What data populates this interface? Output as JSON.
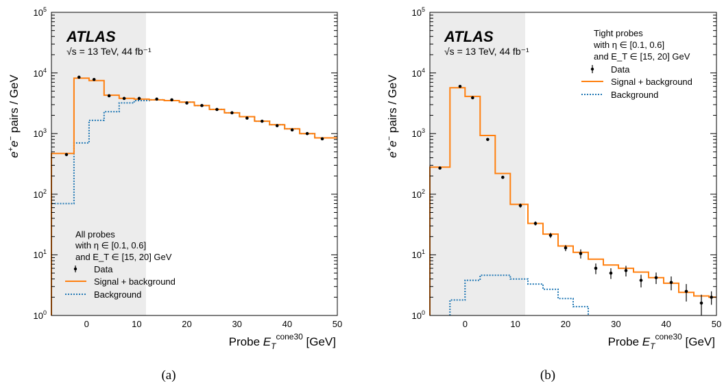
{
  "colors": {
    "signal_bkg": "#ff7f0e",
    "background": "#1f77b4",
    "data": "#000000",
    "shade": "#ececec"
  },
  "chart_data": [
    {
      "type": "histogram",
      "panel_label": "(a)",
      "experiment": "ATLAS",
      "energy_text": "√s = 13 TeV, 44 fb⁻¹",
      "xlabel": "Probe E_T^cone30 [GeV]",
      "ylabel": "e⁺e⁻ pairs / GeV",
      "xlim": [
        -7,
        50
      ],
      "ylim": [
        1,
        100000
      ],
      "yscale": "log",
      "x_ticks": [
        0,
        10,
        20,
        30,
        40,
        50
      ],
      "y_ticks": [
        1,
        10,
        100,
        1000,
        10000,
        100000
      ],
      "y_tick_labels": [
        "10^0",
        "10^1",
        "10^2",
        "10^3",
        "10^4",
        "10^5"
      ],
      "shaded_region": [
        -7,
        12.5
      ],
      "legend_position": "bottom-left",
      "legend_title": [
        "All probes",
        "with η ∈ [0.1, 0.6]",
        "and E_T ∈ [15, 20] GeV"
      ],
      "legend": [
        "Data",
        "Signal + background",
        "Background"
      ],
      "bin_edges": [
        -7,
        -2.5,
        0.5,
        3.5,
        6.5,
        9.5,
        12.5,
        15.5,
        18.5,
        21.5,
        24.5,
        27.5,
        30.5,
        33.5,
        36.5,
        39.5,
        42.5,
        45.5,
        48.5,
        50
      ],
      "series": [
        {
          "name": "Data",
          "style": "points",
          "x": [
            -4,
            -1.5,
            1.5,
            4.5,
            7.5,
            10.5,
            14,
            17,
            20,
            23,
            26,
            29,
            32,
            35,
            38,
            41,
            44,
            47
          ],
          "y": [
            450,
            8500,
            7800,
            4200,
            3800,
            3800,
            3700,
            3600,
            3200,
            2900,
            2500,
            2200,
            1800,
            1600,
            1350,
            1150,
            1000,
            820
          ]
        },
        {
          "name": "Signal + background",
          "style": "step",
          "values": [
            470,
            8200,
            7500,
            4300,
            3800,
            3700,
            3600,
            3500,
            3300,
            2900,
            2500,
            2200,
            1900,
            1600,
            1400,
            1200,
            1000,
            850,
            850
          ]
        },
        {
          "name": "Background",
          "style": "step-dotted",
          "values": [
            70,
            700,
            1650,
            2300,
            3200,
            3500,
            3600,
            3500,
            3300,
            2900,
            2500,
            2200,
            1900,
            1600,
            1400,
            1200,
            1000,
            850,
            850
          ]
        }
      ]
    },
    {
      "type": "histogram",
      "panel_label": "(b)",
      "experiment": "ATLAS",
      "energy_text": "√s = 13 TeV, 44 fb⁻¹",
      "xlabel": "Probe E_T^cone30 [GeV]",
      "ylabel": "e⁺e⁻ pairs / GeV",
      "xlim": [
        -7,
        50
      ],
      "ylim": [
        1,
        100000
      ],
      "yscale": "log",
      "x_ticks": [
        0,
        10,
        20,
        30,
        40,
        50
      ],
      "y_ticks": [
        1,
        10,
        100,
        1000,
        10000,
        100000
      ],
      "y_tick_labels": [
        "10^0",
        "10^1",
        "10^2",
        "10^3",
        "10^4",
        "10^5"
      ],
      "shaded_region": [
        -7,
        12.5
      ],
      "legend_position": "top-right",
      "legend_title": [
        "Tight probes",
        "with η ∈ [0.1, 0.6]",
        "and E_T ∈ [15, 20] GeV"
      ],
      "legend": [
        "Data",
        "Signal + background",
        "Background"
      ],
      "bin_edges": [
        -7,
        -3,
        0,
        3,
        6,
        9,
        12.5,
        15.5,
        18.5,
        21.5,
        24.5,
        27.5,
        30.5,
        33.5,
        36.5,
        39.5,
        42.5,
        45.5,
        48.5,
        50
      ],
      "series": [
        {
          "name": "Data",
          "style": "points",
          "x": [
            -5,
            -1,
            1.5,
            4.5,
            7.5,
            11,
            14,
            17,
            20,
            23,
            26,
            29,
            32,
            35,
            38,
            41,
            44,
            47,
            49
          ],
          "y": [
            270,
            6000,
            3900,
            800,
            190,
            65,
            33,
            21,
            13,
            10.5,
            6,
            5,
            5.5,
            3.8,
            4.2,
            3.5,
            2.5,
            1.6,
            2
          ],
          "yerr": [
            8,
            80,
            60,
            25,
            10,
            5,
            2.5,
            2,
            1.5,
            1.8,
            1.2,
            1.0,
            1.1,
            0.9,
            0.9,
            0.9,
            0.8,
            0.6,
            0.5
          ]
        },
        {
          "name": "Signal + background",
          "style": "step",
          "values": [
            280,
            5700,
            4100,
            930,
            220,
            68,
            33,
            22,
            14,
            11,
            8.5,
            6.8,
            6,
            5.2,
            4.2,
            3.4,
            2.4,
            2.1,
            2
          ]
        },
        {
          "name": "Background",
          "style": "step-dotted",
          "values": [
            null,
            1.8,
            3.8,
            4.6,
            4.6,
            4.0,
            3.3,
            2.7,
            1.9,
            1.4,
            null,
            null,
            null,
            null,
            null,
            null,
            null,
            null,
            null
          ]
        }
      ]
    }
  ]
}
